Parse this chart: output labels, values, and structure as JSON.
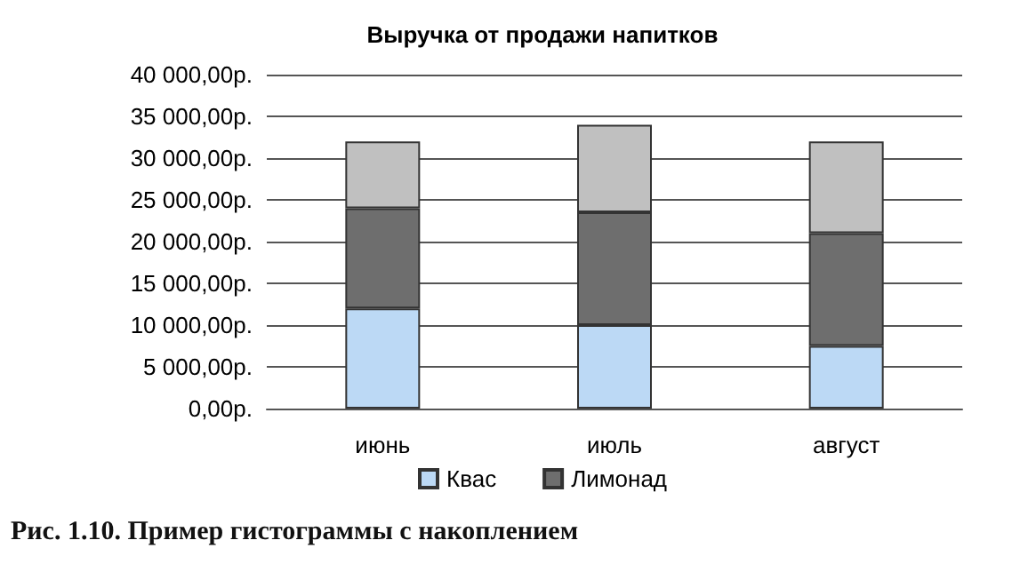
{
  "chart_data": {
    "type": "bar",
    "title": "Выручка от продажи напитков",
    "stacked": true,
    "categories": [
      "июнь",
      "июль",
      "август"
    ],
    "series": [
      {
        "name": "Квас",
        "color": "#bcd9f5",
        "values": [
          12000,
          10000,
          7500
        ]
      },
      {
        "name": "Лимонад",
        "color": "#6e6e6e",
        "values": [
          12000,
          13500,
          13500
        ]
      },
      {
        "color": "#c0c0c0",
        "values": [
          8000,
          10500,
          11000
        ]
      }
    ],
    "ylim": [
      0,
      40000
    ],
    "yticks": [
      {
        "value": 0,
        "label": "0,00р."
      },
      {
        "value": 5000,
        "label": "5 000,00р."
      },
      {
        "value": 10000,
        "label": "10 000,00р."
      },
      {
        "value": 15000,
        "label": "15 000,00р."
      },
      {
        "value": 20000,
        "label": "20 000,00р."
      },
      {
        "value": 25000,
        "label": "25 000,00р."
      },
      {
        "value": 30000,
        "label": "30 000,00р."
      },
      {
        "value": 35000,
        "label": "35 000,00р."
      },
      {
        "value": 40000,
        "label": "40 000,00р."
      }
    ],
    "grid": "y",
    "legend": "bottom",
    "annotations": [
      "Рис. 1.10. Пример гистограммы с накоплением"
    ]
  }
}
